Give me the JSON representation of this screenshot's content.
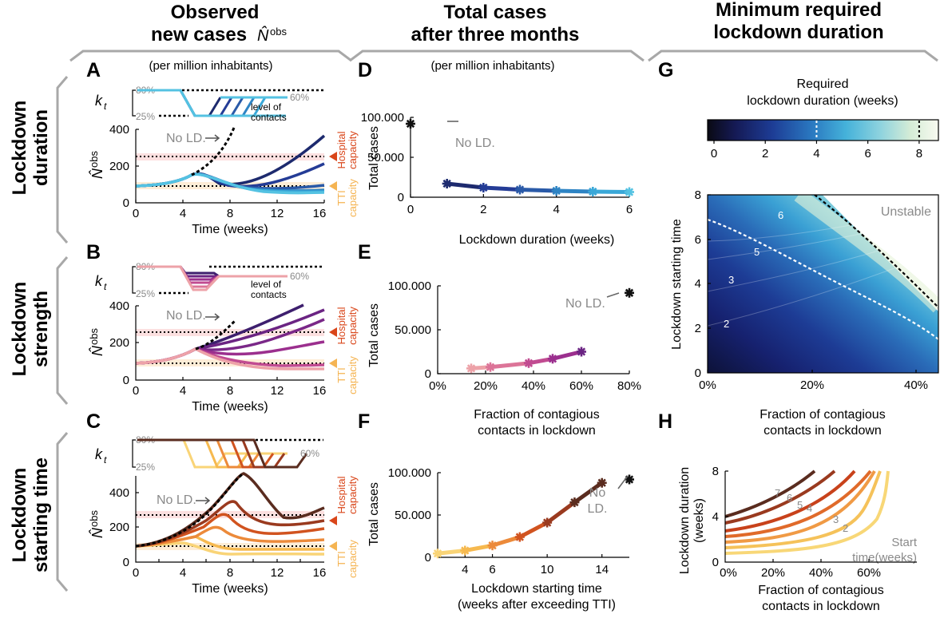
{
  "columns": {
    "c1": {
      "line1": "Observed",
      "line2": "new cases",
      "symbol": "N̂",
      "sup": "obs"
    },
    "c2": {
      "line1": "Total cases",
      "line2": "after three months"
    },
    "c3": {
      "line1": "Minimum required",
      "line2": "lockdown duration"
    }
  },
  "rows": {
    "r1": {
      "line1": "Lockdown",
      "line2": "duration"
    },
    "r2": {
      "line1": "Lockdown",
      "line2": "strength"
    },
    "r3": {
      "line1": "Lockdown",
      "line2": "starting time"
    }
  },
  "panel_letters": [
    "A",
    "B",
    "C",
    "D",
    "E",
    "F",
    "G",
    "H"
  ],
  "per_million": "(per million inhabitants)",
  "kt": {
    "symbol": "k",
    "sub": "t",
    "high": "80%",
    "low": "25%",
    "mid": "60%",
    "level1": "level of",
    "level2": "contacts"
  },
  "capacity": {
    "hosp1": "Hospital",
    "hosp2": "capacity",
    "tti1": "TTI",
    "tti2": "capacity"
  },
  "no_ld": "No LD.",
  "no": "No",
  "ld": "LD.",
  "colorbar": {
    "title1": "Required",
    "title2": "lockdown duration (weeks)",
    "ticks": [
      "0",
      "2",
      "4",
      "6",
      "8"
    ],
    "range": [
      0,
      9
    ],
    "dashed_at": [
      4,
      8
    ]
  },
  "colors": {
    "hospital": "#d9461a",
    "tti": "#f5b452",
    "duration_series": [
      "#1d2a6e",
      "#243c96",
      "#2a5aa8",
      "#2e84c4",
      "#3aa8d8",
      "#54c2e2"
    ],
    "strength_series": [
      "#3e1f6e",
      "#6b2483",
      "#9b2f8e",
      "#c14b91",
      "#dc7498",
      "#eda2a8"
    ],
    "start_series": [
      "#5a2c1f",
      "#9a3a1f",
      "#d1531f",
      "#ec8a3a",
      "#f6b94f",
      "#f9d477"
    ]
  },
  "chart_data": [
    {
      "type": "line",
      "panel": "A",
      "title": "",
      "xlabel": "Time (weeks)",
      "ylabel": "N̂obs",
      "xlim": [
        0,
        16
      ],
      "ylim": [
        0,
        400
      ],
      "xticks": [
        "0",
        "4",
        "8",
        "12",
        "16"
      ],
      "yticks": [
        "0",
        "200",
        "400"
      ],
      "reference_lines": {
        "hospital": 250,
        "tti": 85
      },
      "annotation": "No LD."
    },
    {
      "type": "line",
      "panel": "B",
      "xlabel": "Time (weeks)",
      "ylabel": "N̂obs",
      "xlim": [
        0,
        16
      ],
      "ylim": [
        0,
        400
      ],
      "xticks": [
        "0",
        "4",
        "8",
        "12",
        "16"
      ],
      "yticks": [
        "0",
        "200",
        "400"
      ],
      "reference_lines": {
        "hospital": 250,
        "tti": 85
      },
      "annotation": "No LD."
    },
    {
      "type": "line",
      "panel": "C",
      "xlabel": "Time (weeks)",
      "ylabel": "N̂obs",
      "xlim": [
        0,
        16
      ],
      "ylim": [
        0,
        500
      ],
      "xticks": [
        "0",
        "4",
        "8",
        "12",
        "16"
      ],
      "yticks": [
        "0",
        "200",
        "400"
      ],
      "reference_lines": {
        "hospital": 250,
        "tti": 85
      },
      "annotation": "No LD."
    },
    {
      "type": "line",
      "panel": "D",
      "xlabel": "Lockdown duration (weeks)",
      "ylabel": "Total cases",
      "xlim": [
        0,
        6
      ],
      "ylim": [
        0,
        100000
      ],
      "xticks": [
        "0",
        "2",
        "4",
        "6"
      ],
      "yticks": [
        "0",
        "50.000",
        "100.000"
      ],
      "x": [
        1,
        2,
        3,
        4,
        5,
        6
      ],
      "values": [
        17000,
        12000,
        9500,
        8000,
        7000,
        6500
      ],
      "no_ld": {
        "x": 0,
        "y": 92000,
        "label": "No LD."
      }
    },
    {
      "type": "line",
      "panel": "E",
      "xlabel": "Fraction of contagious contacts in lockdown",
      "ylabel": "Total cases",
      "xlim": [
        0,
        80
      ],
      "ylim": [
        0,
        100000
      ],
      "xticks": [
        "0%",
        "20%",
        "40%",
        "60%",
        "80%"
      ],
      "yticks": [
        "0",
        "50.000",
        "100.000"
      ],
      "x": [
        14,
        22,
        38,
        48,
        60
      ],
      "values": [
        6000,
        7500,
        12000,
        17000,
        25000
      ],
      "no_ld": {
        "x": 80,
        "y": 92000,
        "label": "No LD."
      }
    },
    {
      "type": "line",
      "panel": "F",
      "xlabel": "Lockdown starting time (weeks after exceeding TTI)",
      "ylabel": "Total cases",
      "xlim": [
        2,
        16
      ],
      "ylim": [
        0,
        100000
      ],
      "xticks": [
        "4",
        "6",
        "10",
        "14"
      ],
      "yticks": [
        "0",
        "50.000",
        "100.000"
      ],
      "x": [
        2,
        4,
        6,
        8,
        10,
        12,
        14
      ],
      "values": [
        4500,
        8000,
        14000,
        24000,
        41000,
        65000,
        88000
      ],
      "no_ld": {
        "x": 16,
        "y": 92000,
        "label": "No LD."
      }
    },
    {
      "type": "heatmap",
      "panel": "G",
      "xlabel": "Fraction of contagious contacts in lockdown",
      "ylabel": "Lockdown starting time",
      "xlim": [
        0,
        45
      ],
      "ylim": [
        0,
        8
      ],
      "xticks": [
        "0%",
        "20%",
        "40%"
      ],
      "yticks": [
        "0",
        "2",
        "4",
        "6",
        "8"
      ],
      "contour_labels": [
        "2",
        "3",
        "5",
        "6"
      ],
      "region_label": "Unstable"
    },
    {
      "type": "line",
      "panel": "H",
      "xlabel": "Fraction of contagious contacts in lockdown",
      "ylabel": "Lockdown duration (weeks)",
      "xlim": [
        0,
        60
      ],
      "ylim": [
        0,
        8
      ],
      "xticks": [
        "0%",
        "20%",
        "40%",
        "60%"
      ],
      "yticks": [
        "0",
        "4",
        "8"
      ],
      "series_labels": [
        "2",
        "3",
        "4",
        "5",
        "6",
        "7"
      ],
      "legend": "Start time(weeks)"
    }
  ]
}
